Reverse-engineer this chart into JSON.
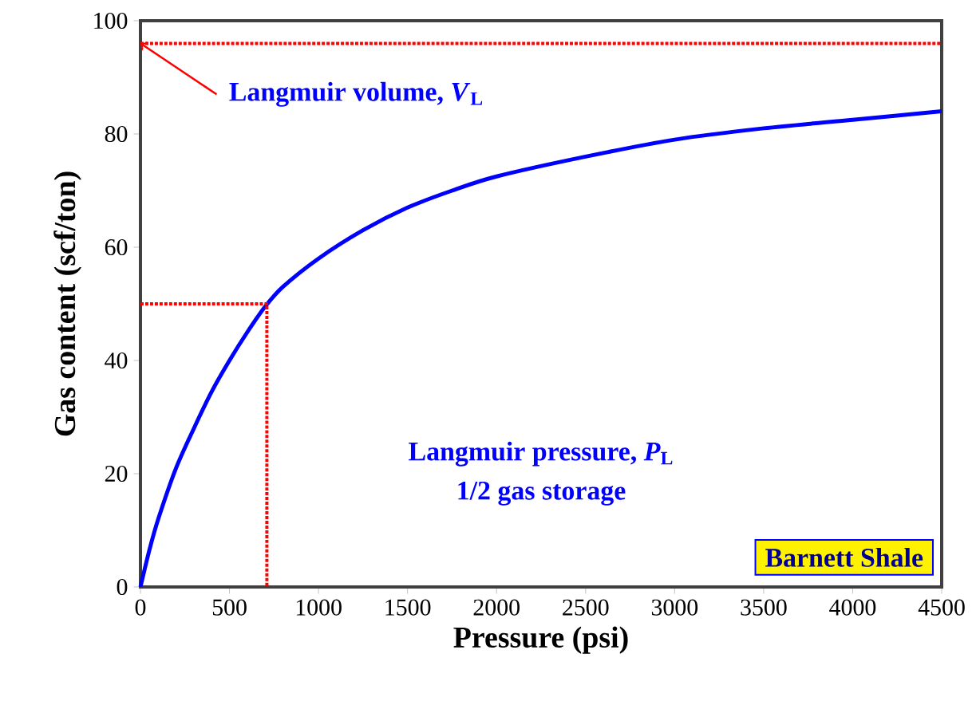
{
  "chart_data": {
    "type": "line",
    "xlabel": "Pressure (psi)",
    "ylabel": "Gas content (scf/ton)",
    "xlim": [
      0,
      4500
    ],
    "ylim": [
      0,
      100
    ],
    "xticks": [
      0,
      500,
      1000,
      1500,
      2000,
      2500,
      3000,
      3500,
      4000,
      4500
    ],
    "yticks": [
      0,
      20,
      40,
      60,
      80,
      100
    ],
    "grid": false,
    "series": [
      {
        "color": "#0000ff",
        "x": [
          0,
          50,
          100,
          200,
          300,
          400,
          500,
          600,
          700,
          800,
          1000,
          1250,
          1500,
          1750,
          2000,
          2500,
          3000,
          3500,
          4000,
          4500
        ],
        "values": [
          0,
          6.5,
          12,
          21,
          28,
          34.5,
          40,
          45,
          49.5,
          53,
          58,
          63,
          67,
          70,
          72.5,
          76,
          79,
          81,
          82.5,
          84
        ]
      },
      {
        "type": "line",
        "color": "#ff0000",
        "line_style": "dotted",
        "x": [
          0,
          710,
          710
        ],
        "values": [
          50,
          50,
          0
        ]
      }
    ],
    "ref_lines": [
      {
        "axis": "y",
        "value": 96,
        "color": "#ff0000",
        "line_style": "dotted"
      }
    ],
    "annotations": [
      {
        "text": "Langmuir volume, *V*$_{L}$",
        "x": 0,
        "y": 96
      },
      "Langmuir pressure, *P*$_{L}$",
      "1/2 gas storage",
      "Barnett Shale"
    ]
  }
}
